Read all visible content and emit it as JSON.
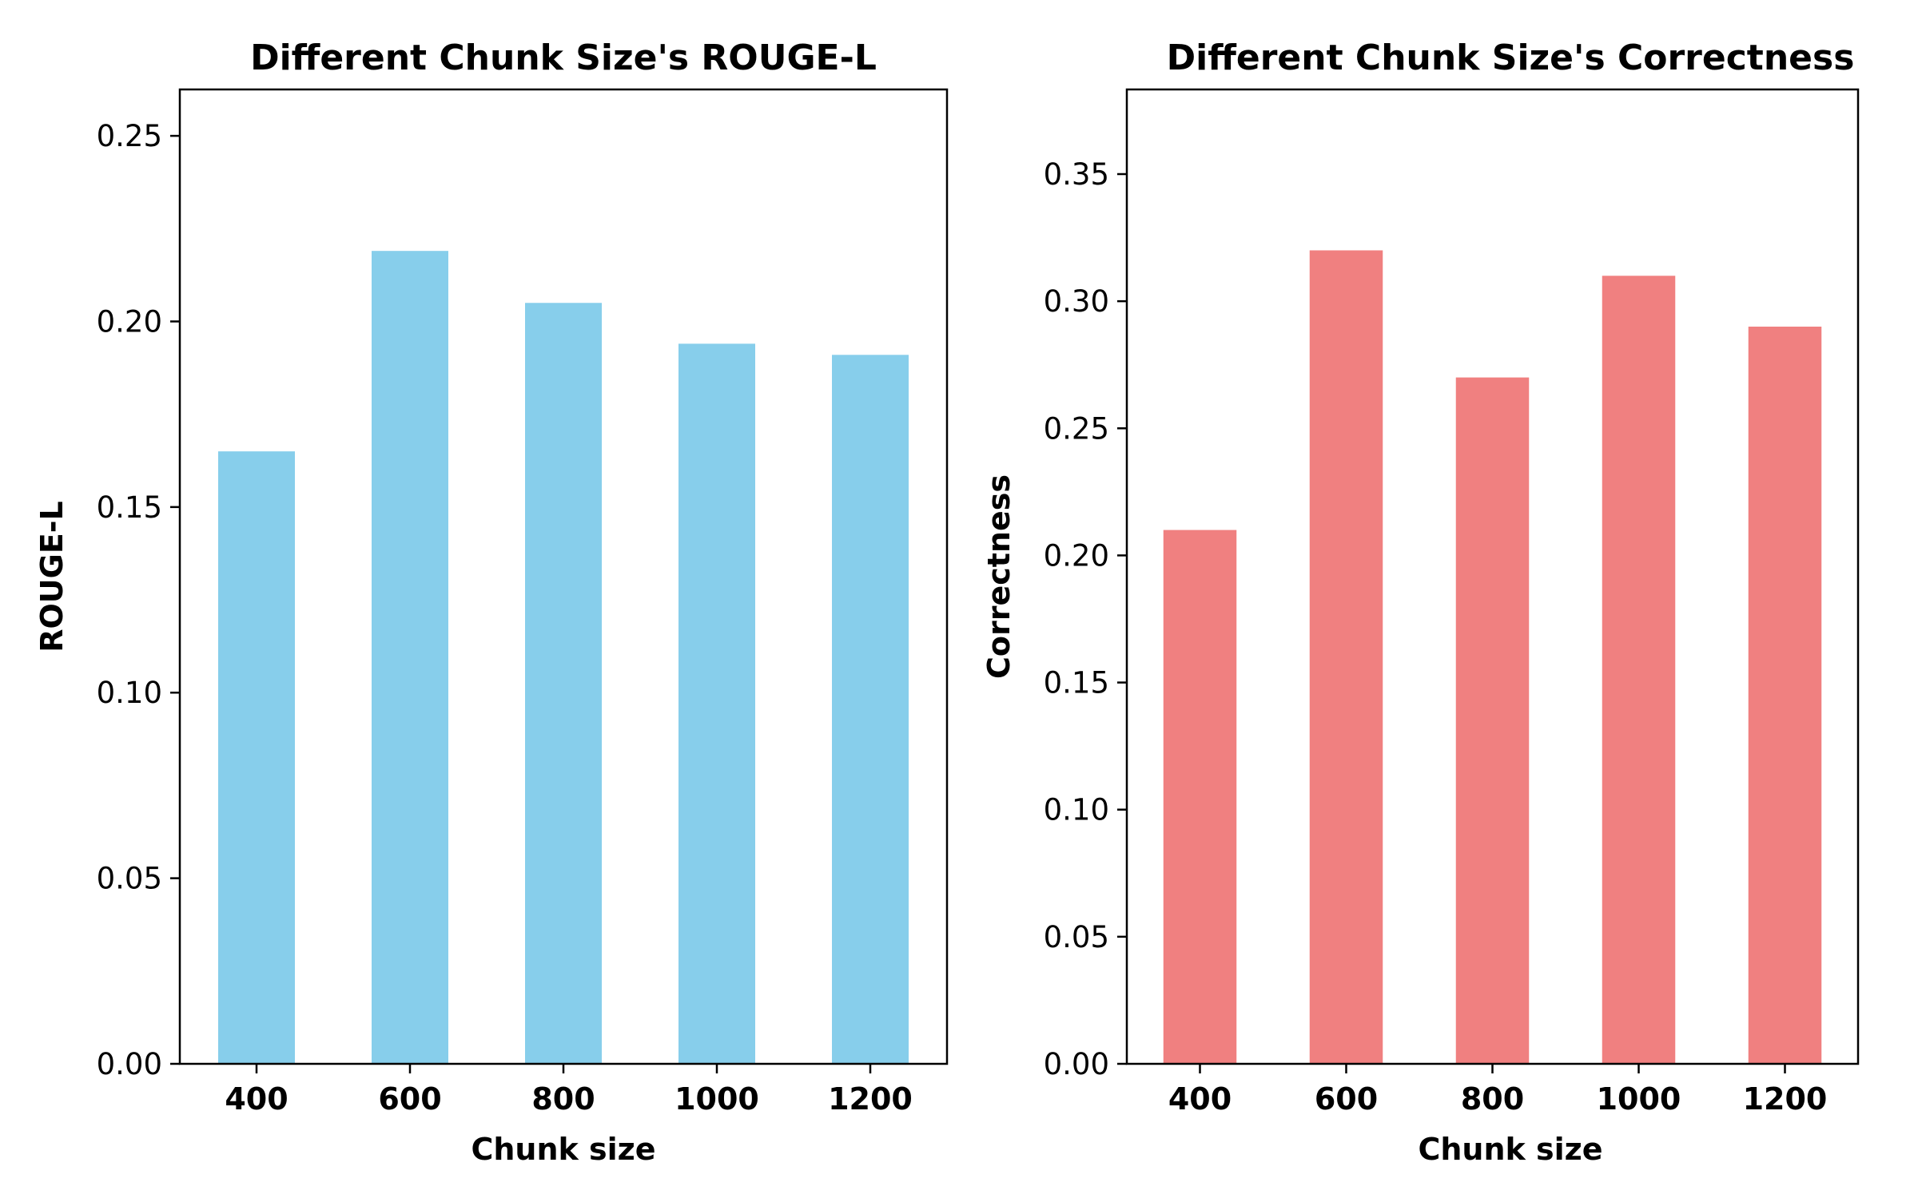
{
  "chart_data": [
    {
      "type": "bar",
      "title": "Different Chunk Size's ROUGE-L",
      "xlabel": "Chunk size",
      "ylabel": "ROUGE-L",
      "categories": [
        "400",
        "600",
        "800",
        "1000",
        "1200"
      ],
      "values": [
        0.165,
        0.219,
        0.205,
        0.194,
        0.191
      ],
      "ylim": [
        0,
        0.2625
      ],
      "yticks": [
        "0.00",
        "0.05",
        "0.10",
        "0.15",
        "0.20",
        "0.25"
      ],
      "color": "#87CEEB",
      "grid": false,
      "legend": "none"
    },
    {
      "type": "bar",
      "title": "Different Chunk Size's Correctness",
      "xlabel": "Chunk size",
      "ylabel": "Correctness",
      "categories": [
        "400",
        "600",
        "800",
        "1000",
        "1200"
      ],
      "values": [
        0.21,
        0.32,
        0.27,
        0.31,
        0.29
      ],
      "ylim": [
        0,
        0.3833
      ],
      "yticks": [
        "0.00",
        "0.05",
        "0.10",
        "0.15",
        "0.20",
        "0.25",
        "0.30",
        "0.35"
      ],
      "color": "#F08080",
      "grid": false,
      "legend": "none"
    }
  ]
}
